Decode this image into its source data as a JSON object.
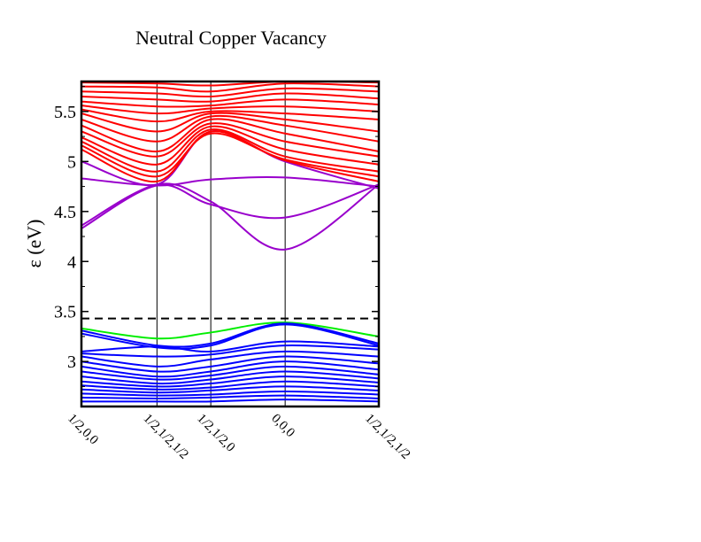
{
  "chart_data": {
    "type": "line",
    "title": "Neutral Copper Vacancy",
    "ylabel": "ε (eV)",
    "xlabel": "",
    "ylim": [
      2.55,
      5.8
    ],
    "yticks": [
      3,
      3.5,
      4,
      4.5,
      5,
      5.5
    ],
    "ytick_labels": [
      "3",
      "3.5",
      "4",
      "4.5",
      "5",
      "5.5"
    ],
    "kpoints": [
      0,
      0.254,
      0.435,
      0.685,
      1.0
    ],
    "kpoint_labels": [
      "1/2,0,0",
      "1/2,1/2,1/2",
      "1/2,1/2,0",
      "0,0,0",
      "1/2,1/2,1/2"
    ],
    "fermi_level": 3.43,
    "grid": "vertical lines at high-symmetry points",
    "legend": "none",
    "series_colors": {
      "conduction": "#ff0000",
      "defect_conduction": "#9900cc",
      "defect_valence": "#00ee00",
      "valence": "#0000ff",
      "fermi": "#000000"
    },
    "series": [
      {
        "group": "defect_conduction",
        "x": [
          0,
          0.254,
          0.435,
          0.685,
          1.0
        ],
        "values": [
          4.36,
          4.77,
          4.6,
          4.12,
          4.77
        ]
      },
      {
        "group": "defect_conduction",
        "x": [
          0,
          0.254,
          0.435,
          0.685,
          1.0
        ],
        "values": [
          4.33,
          4.76,
          4.57,
          4.44,
          4.77
        ]
      },
      {
        "group": "defect_conduction",
        "x": [
          0,
          0.254,
          0.435,
          0.685,
          1.0
        ],
        "values": [
          4.83,
          4.76,
          4.82,
          4.84,
          4.75
        ]
      },
      {
        "group": "defect_conduction",
        "x": [
          0,
          0.254,
          0.435,
          0.685,
          1.0
        ],
        "values": [
          5.0,
          4.77,
          5.3,
          5.0,
          4.73
        ]
      },
      {
        "group": "conduction",
        "x": [
          0,
          0.254,
          0.435,
          0.685,
          1.0
        ],
        "values": [
          5.12,
          4.8,
          5.3,
          5.01,
          4.8
        ]
      },
      {
        "group": "conduction",
        "x": [
          0,
          0.254,
          0.435,
          0.685,
          1.0
        ],
        "values": [
          5.16,
          4.85,
          5.28,
          5.02,
          4.85
        ]
      },
      {
        "group": "conduction",
        "x": [
          0,
          0.254,
          0.435,
          0.685,
          1.0
        ],
        "values": [
          5.2,
          4.9,
          5.32,
          5.05,
          4.9
        ]
      },
      {
        "group": "conduction",
        "x": [
          0,
          0.254,
          0.435,
          0.685,
          1.0
        ],
        "values": [
          5.24,
          4.97,
          5.35,
          5.12,
          4.97
        ]
      },
      {
        "group": "conduction",
        "x": [
          0,
          0.254,
          0.435,
          0.685,
          1.0
        ],
        "values": [
          5.3,
          5.05,
          5.38,
          5.2,
          5.05
        ]
      },
      {
        "group": "conduction",
        "x": [
          0,
          0.254,
          0.435,
          0.685,
          1.0
        ],
        "values": [
          5.36,
          5.1,
          5.42,
          5.28,
          5.1
        ]
      },
      {
        "group": "conduction",
        "x": [
          0,
          0.254,
          0.435,
          0.685,
          1.0
        ],
        "values": [
          5.42,
          5.2,
          5.45,
          5.36,
          5.2
        ]
      },
      {
        "group": "conduction",
        "x": [
          0,
          0.254,
          0.435,
          0.685,
          1.0
        ],
        "values": [
          5.48,
          5.3,
          5.48,
          5.42,
          5.3
        ]
      },
      {
        "group": "conduction",
        "x": [
          0,
          0.254,
          0.435,
          0.685,
          1.0
        ],
        "values": [
          5.52,
          5.4,
          5.5,
          5.48,
          5.42
        ]
      },
      {
        "group": "conduction",
        "x": [
          0,
          0.254,
          0.435,
          0.685,
          1.0
        ],
        "values": [
          5.56,
          5.48,
          5.53,
          5.55,
          5.5
        ]
      },
      {
        "group": "conduction",
        "x": [
          0,
          0.254,
          0.435,
          0.685,
          1.0
        ],
        "values": [
          5.6,
          5.55,
          5.56,
          5.62,
          5.57
        ]
      },
      {
        "group": "conduction",
        "x": [
          0,
          0.254,
          0.435,
          0.685,
          1.0
        ],
        "values": [
          5.65,
          5.62,
          5.6,
          5.68,
          5.63
        ]
      },
      {
        "group": "conduction",
        "x": [
          0,
          0.254,
          0.435,
          0.685,
          1.0
        ],
        "values": [
          5.7,
          5.68,
          5.65,
          5.73,
          5.7
        ]
      },
      {
        "group": "conduction",
        "x": [
          0,
          0.254,
          0.435,
          0.685,
          1.0
        ],
        "values": [
          5.75,
          5.74,
          5.7,
          5.78,
          5.75
        ]
      },
      {
        "group": "conduction",
        "x": [
          0,
          0.254,
          0.435,
          0.685,
          1.0
        ],
        "values": [
          5.79,
          5.78,
          5.76,
          5.8,
          5.79
        ]
      },
      {
        "group": "defect_valence",
        "x": [
          0,
          0.254,
          0.435,
          0.685,
          1.0
        ],
        "values": [
          3.33,
          3.23,
          3.29,
          3.39,
          3.25
        ]
      },
      {
        "group": "valence",
        "x": [
          0,
          0.254,
          0.435,
          0.685,
          1.0
        ],
        "values": [
          3.31,
          3.16,
          3.18,
          3.38,
          3.18
        ]
      },
      {
        "group": "valence",
        "x": [
          0,
          0.254,
          0.435,
          0.685,
          1.0
        ],
        "values": [
          3.28,
          3.14,
          3.16,
          3.37,
          3.16
        ]
      },
      {
        "group": "valence",
        "x": [
          0,
          0.254,
          0.435,
          0.685,
          1.0
        ],
        "values": [
          3.1,
          3.15,
          3.1,
          3.2,
          3.15
        ]
      },
      {
        "group": "valence",
        "x": [
          0,
          0.254,
          0.435,
          0.685,
          1.0
        ],
        "values": [
          3.08,
          3.05,
          3.07,
          3.16,
          3.12
        ]
      },
      {
        "group": "valence",
        "x": [
          0,
          0.254,
          0.435,
          0.685,
          1.0
        ],
        "values": [
          3.05,
          2.95,
          3.02,
          3.1,
          3.05
        ]
      },
      {
        "group": "valence",
        "x": [
          0,
          0.254,
          0.435,
          0.685,
          1.0
        ],
        "values": [
          3.0,
          2.9,
          2.95,
          3.05,
          2.98
        ]
      },
      {
        "group": "valence",
        "x": [
          0,
          0.254,
          0.435,
          0.685,
          1.0
        ],
        "values": [
          2.95,
          2.85,
          2.9,
          3.0,
          2.92
        ]
      },
      {
        "group": "valence",
        "x": [
          0,
          0.254,
          0.435,
          0.685,
          1.0
        ],
        "values": [
          2.9,
          2.82,
          2.86,
          2.95,
          2.87
        ]
      },
      {
        "group": "valence",
        "x": [
          0,
          0.254,
          0.435,
          0.685,
          1.0
        ],
        "values": [
          2.85,
          2.78,
          2.82,
          2.9,
          2.83
        ]
      },
      {
        "group": "valence",
        "x": [
          0,
          0.254,
          0.435,
          0.685,
          1.0
        ],
        "values": [
          2.8,
          2.75,
          2.78,
          2.85,
          2.79
        ]
      },
      {
        "group": "valence",
        "x": [
          0,
          0.254,
          0.435,
          0.685,
          1.0
        ],
        "values": [
          2.76,
          2.72,
          2.74,
          2.8,
          2.75
        ]
      },
      {
        "group": "valence",
        "x": [
          0,
          0.254,
          0.435,
          0.685,
          1.0
        ],
        "values": [
          2.72,
          2.69,
          2.71,
          2.75,
          2.71
        ]
      },
      {
        "group": "valence",
        "x": [
          0,
          0.254,
          0.435,
          0.685,
          1.0
        ],
        "values": [
          2.68,
          2.66,
          2.67,
          2.7,
          2.67
        ]
      },
      {
        "group": "valence",
        "x": [
          0,
          0.254,
          0.435,
          0.685,
          1.0
        ],
        "values": [
          2.64,
          2.63,
          2.64,
          2.66,
          2.63
        ]
      },
      {
        "group": "valence",
        "x": [
          0,
          0.254,
          0.435,
          0.685,
          1.0
        ],
        "values": [
          2.6,
          2.6,
          2.6,
          2.62,
          2.6
        ]
      }
    ]
  }
}
